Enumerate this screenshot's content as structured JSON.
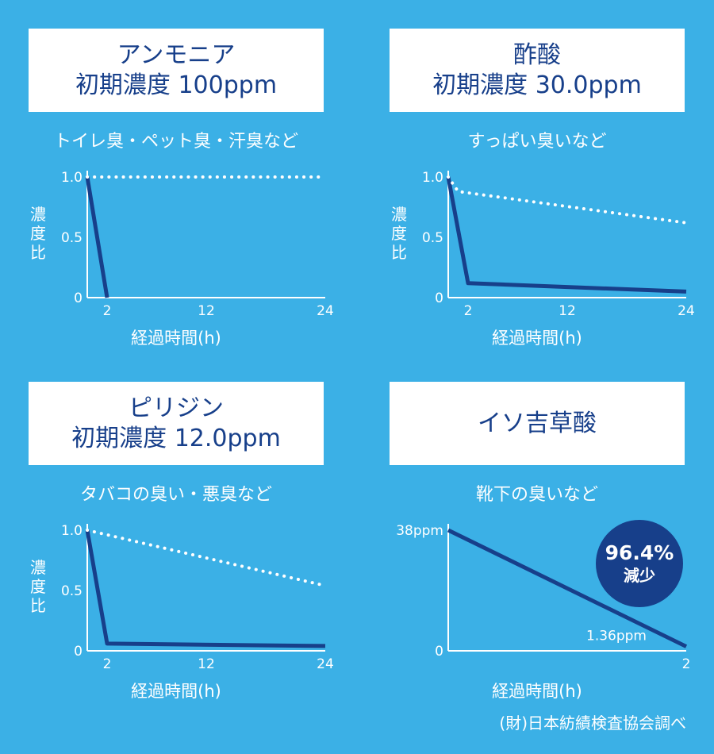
{
  "panels": [
    {
      "title_line1": "アンモニア",
      "title_line2": "初期濃度 100ppm",
      "subtitle": "トイレ臭・ペット臭・汗臭など",
      "ylabel": "濃度比",
      "xlabel": "経過時間(h)"
    },
    {
      "title_line1": "酢酸",
      "title_line2": "初期濃度 30.0ppm",
      "subtitle": "すっぱい臭いなど",
      "ylabel": "濃度比",
      "xlabel": "経過時間(h)"
    },
    {
      "title_line1": "ピリジン",
      "title_line2": "初期濃度 12.0ppm",
      "subtitle": "タバコの臭い・悪臭など",
      "ylabel": "濃度比",
      "xlabel": "経過時間(h)"
    },
    {
      "title_line1": "イソ吉草酸",
      "title_line2": "",
      "subtitle": "靴下の臭いなど",
      "ylabel": "",
      "xlabel": "経過時間(h)",
      "badge_pct": "96.4%",
      "badge_label": "減少"
    }
  ],
  "source": "(財)日本紡績検査協会調べ",
  "colors": {
    "background": "#3bb0e6",
    "line": "#173f8a",
    "dotted": "#ffffff",
    "badge": "#173f8a"
  },
  "chart_data": [
    {
      "type": "line",
      "xlim": [
        0,
        24
      ],
      "ylim": [
        0,
        1.0
      ],
      "xticks": [
        "2",
        "12",
        "24"
      ],
      "xtick_values": [
        2,
        12,
        24
      ],
      "yticks": [
        "0",
        "0.5",
        "1.0"
      ],
      "ytick_values": [
        0,
        0.5,
        1.0
      ],
      "series": [
        {
          "style": "solid",
          "x": [
            0,
            2
          ],
          "y": [
            1.0,
            0.0
          ]
        },
        {
          "style": "dotted",
          "x": [
            0,
            24
          ],
          "y": [
            1.0,
            1.0
          ]
        }
      ]
    },
    {
      "type": "line",
      "xlim": [
        0,
        24
      ],
      "ylim": [
        0,
        1.0
      ],
      "xticks": [
        "2",
        "12",
        "24"
      ],
      "xtick_values": [
        2,
        12,
        24
      ],
      "yticks": [
        "0",
        "0.5",
        "1.0"
      ],
      "ytick_values": [
        0,
        0.5,
        1.0
      ],
      "series": [
        {
          "style": "solid",
          "x": [
            0,
            2,
            24
          ],
          "y": [
            1.0,
            0.12,
            0.05
          ]
        },
        {
          "style": "dotted",
          "x": [
            0,
            1,
            24
          ],
          "y": [
            1.0,
            0.88,
            0.62
          ]
        }
      ]
    },
    {
      "type": "line",
      "xlim": [
        0,
        24
      ],
      "ylim": [
        0,
        1.0
      ],
      "xticks": [
        "2",
        "12",
        "24"
      ],
      "xtick_values": [
        2,
        12,
        24
      ],
      "yticks": [
        "0",
        "0.5",
        "1.0"
      ],
      "ytick_values": [
        0,
        0.5,
        1.0
      ],
      "series": [
        {
          "style": "solid",
          "x": [
            0,
            2,
            24
          ],
          "y": [
            1.0,
            0.06,
            0.04
          ]
        },
        {
          "style": "dotted",
          "x": [
            0,
            24
          ],
          "y": [
            1.0,
            0.54
          ]
        }
      ]
    },
    {
      "type": "line",
      "xlim": [
        0,
        2
      ],
      "ylim": [
        0,
        38
      ],
      "xticks": [
        "2"
      ],
      "xtick_values": [
        2
      ],
      "yticks": [
        "0",
        "38ppm"
      ],
      "ytick_values": [
        0,
        38
      ],
      "series": [
        {
          "style": "solid",
          "x": [
            0,
            2
          ],
          "y": [
            38,
            1.36
          ]
        }
      ],
      "annotations": [
        {
          "text": "1.36ppm",
          "x": 2,
          "y": 1.36
        }
      ]
    }
  ]
}
